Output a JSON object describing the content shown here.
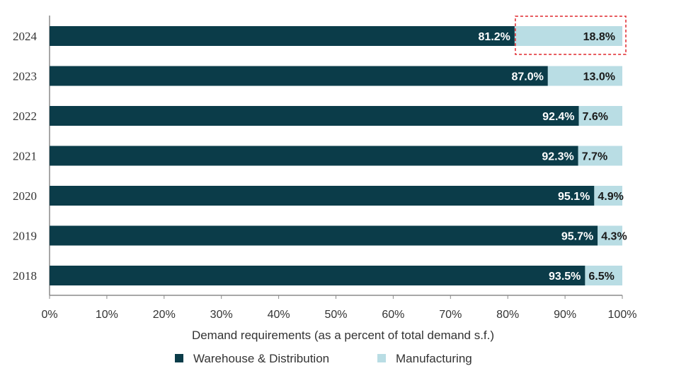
{
  "chart_data": {
    "type": "bar",
    "orientation": "horizontal",
    "stacked": true,
    "categories": [
      "2024",
      "2023",
      "2022",
      "2021",
      "2020",
      "2019",
      "2018"
    ],
    "series": [
      {
        "name": "Warehouse & Distribution",
        "color": "#0b3c49",
        "values": [
          81.2,
          87.0,
          92.4,
          92.3,
          95.1,
          95.7,
          93.5
        ],
        "labels": [
          "81.2%",
          "87.0%",
          "92.4%",
          "92.3%",
          "95.1%",
          "95.7%",
          "93.5%"
        ]
      },
      {
        "name": "Manufacturing",
        "color": "#b9dde4",
        "values": [
          18.8,
          13.0,
          7.6,
          7.7,
          4.9,
          4.3,
          6.5
        ],
        "labels": [
          "18.8%",
          "13.0%",
          "7.6%",
          "7.7%",
          "4.9%",
          "4.3%",
          "6.5%"
        ]
      }
    ],
    "xlabel": "Demand requirements (as a percent of total demand s.f.)",
    "ylabel": "",
    "xlim": [
      0,
      100
    ],
    "xticks": [
      "0%",
      "10%",
      "20%",
      "30%",
      "40%",
      "50%",
      "60%",
      "70%",
      "80%",
      "90%",
      "100%"
    ],
    "grid": false,
    "legend_position": "bottom",
    "highlight": {
      "category": "2024",
      "series": "Manufacturing",
      "style": "dashed red box",
      "color": "#e0262b"
    }
  }
}
